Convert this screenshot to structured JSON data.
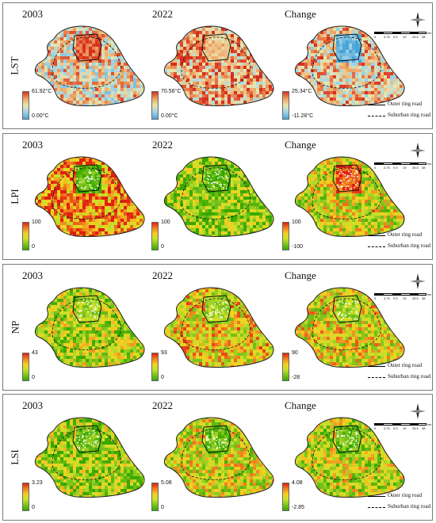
{
  "roads": {
    "outer": "Outer ring road",
    "suburban": "Suburban ring road"
  },
  "scale": {
    "ticks": [
      "0",
      "4.75",
      "9.5",
      "19",
      "28.5",
      "38"
    ],
    "unit": "km"
  },
  "colors": {
    "lst": [
      "#4aa3d8",
      "#9fd3e6",
      "#e8e6b0",
      "#f0a060",
      "#d7301f"
    ],
    "metric": [
      "#38a800",
      "#7dc41c",
      "#c8e02a",
      "#f5d020",
      "#f08020",
      "#e02010"
    ]
  },
  "panels": [
    {
      "label": "LST",
      "scheme": "lst",
      "compass": true,
      "scalebar": true,
      "maps": [
        {
          "title": "2003",
          "max": "61.92°C",
          "min": "0.00°C",
          "intensity": 0.55,
          "core": 0.9
        },
        {
          "title": "2022",
          "max": "70.56°C",
          "min": "0.00°C",
          "intensity": 0.7,
          "core": 0.6
        },
        {
          "title": "Change",
          "max": "25.34°C",
          "min": "-11.28°C",
          "intensity": 0.6,
          "core": 0.1
        }
      ]
    },
    {
      "label": "LPI",
      "scheme": "metric",
      "compass": true,
      "scalebar": true,
      "maps": [
        {
          "title": "2003",
          "max": "100",
          "min": "0",
          "intensity": 0.75,
          "core": 0.1
        },
        {
          "title": "2022",
          "max": "100",
          "min": "0",
          "intensity": 0.25,
          "core": 0.1
        },
        {
          "title": "Change",
          "max": "100",
          "min": "-100",
          "intensity": 0.45,
          "core": 0.9
        }
      ]
    },
    {
      "label": "NP",
      "scheme": "metric",
      "compass": true,
      "scalebar": true,
      "maps": [
        {
          "title": "2003",
          "max": "43",
          "min": "0",
          "intensity": 0.35,
          "core": 0.3
        },
        {
          "title": "2022",
          "max": "93",
          "min": "0",
          "intensity": 0.55,
          "core": 0.3
        },
        {
          "title": "Change",
          "max": "90",
          "min": "-28",
          "intensity": 0.5,
          "core": 0.3
        }
      ]
    },
    {
      "label": "LSI",
      "scheme": "metric",
      "compass": true,
      "scalebar": true,
      "maps": [
        {
          "title": "2003",
          "max": "3.23",
          "min": "0",
          "intensity": 0.3,
          "core": 0.15
        },
        {
          "title": "2022",
          "max": "5.08",
          "min": "0",
          "intensity": 0.45,
          "core": 0.15
        },
        {
          "title": "Change",
          "max": "4.08",
          "min": "-2.85",
          "intensity": 0.4,
          "core": 0.15
        }
      ]
    }
  ]
}
